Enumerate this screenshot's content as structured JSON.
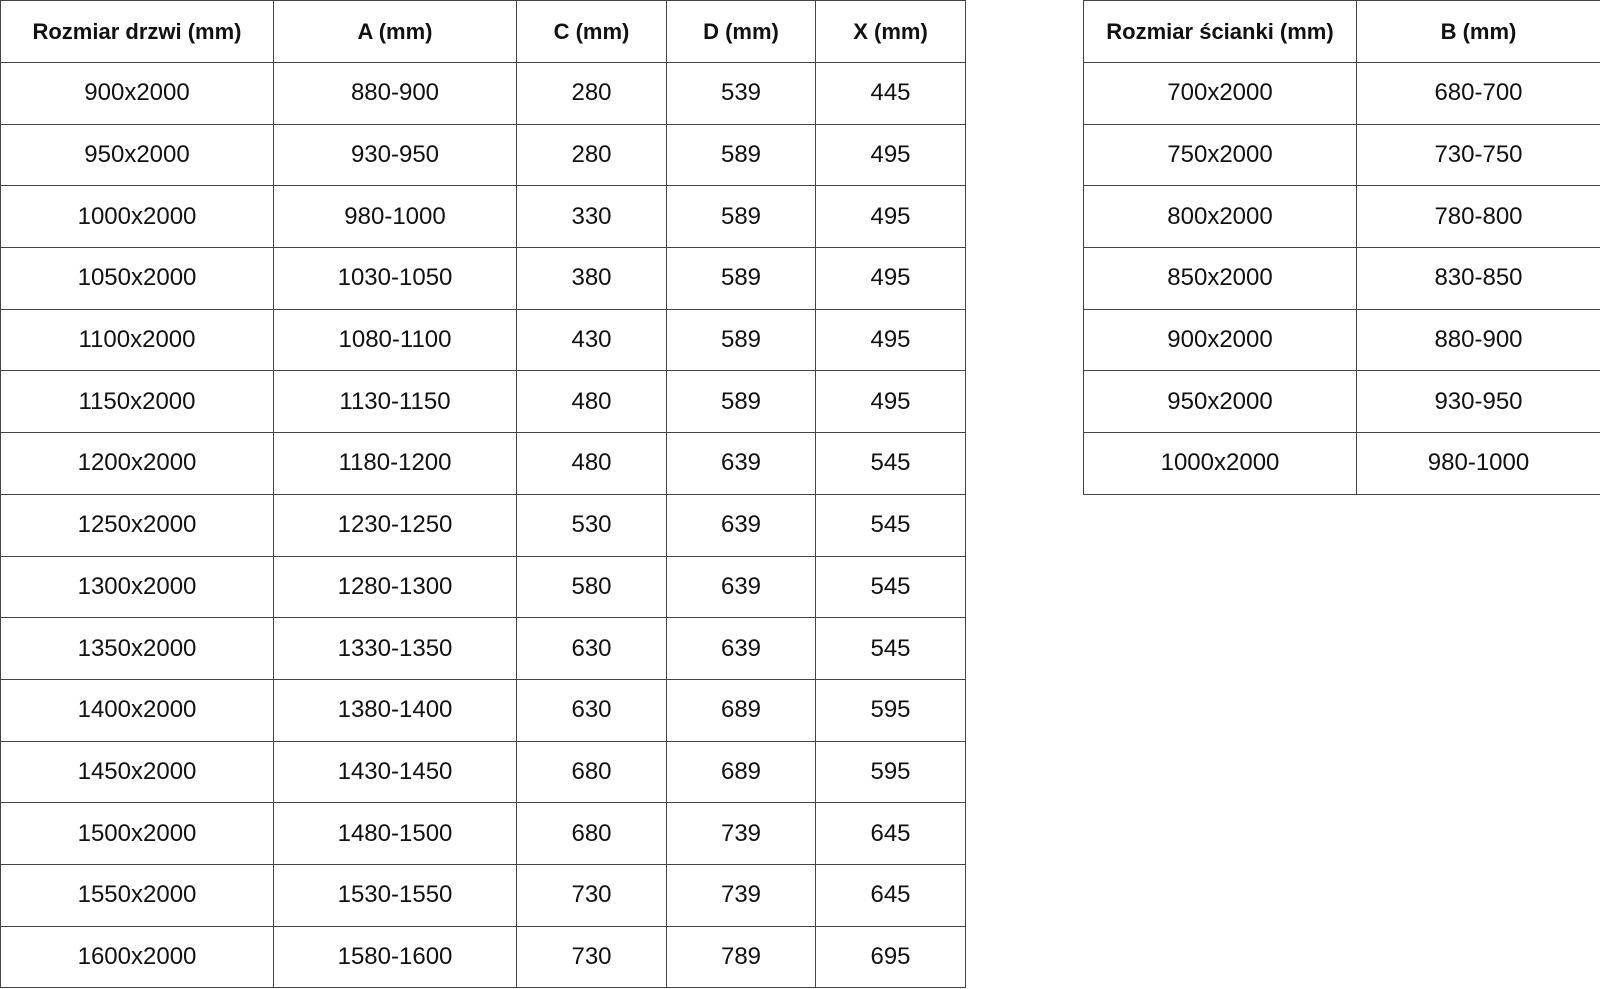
{
  "door_table": {
    "headers": [
      "Rozmiar drzwi (mm)",
      "A (mm)",
      "C (mm)",
      "D (mm)",
      "X (mm)"
    ],
    "rows": [
      [
        "900x2000",
        "880-900",
        "280",
        "539",
        "445"
      ],
      [
        "950x2000",
        "930-950",
        "280",
        "589",
        "495"
      ],
      [
        "1000x2000",
        "980-1000",
        "330",
        "589",
        "495"
      ],
      [
        "1050x2000",
        "1030-1050",
        "380",
        "589",
        "495"
      ],
      [
        "1100x2000",
        "1080-1100",
        "430",
        "589",
        "495"
      ],
      [
        "1150x2000",
        "1130-1150",
        "480",
        "589",
        "495"
      ],
      [
        "1200x2000",
        "1180-1200",
        "480",
        "639",
        "545"
      ],
      [
        "1250x2000",
        "1230-1250",
        "530",
        "639",
        "545"
      ],
      [
        "1300x2000",
        "1280-1300",
        "580",
        "639",
        "545"
      ],
      [
        "1350x2000",
        "1330-1350",
        "630",
        "639",
        "545"
      ],
      [
        "1400x2000",
        "1380-1400",
        "630",
        "689",
        "595"
      ],
      [
        "1450x2000",
        "1430-1450",
        "680",
        "689",
        "595"
      ],
      [
        "1500x2000",
        "1480-1500",
        "680",
        "739",
        "645"
      ],
      [
        "1550x2000",
        "1530-1550",
        "730",
        "739",
        "645"
      ],
      [
        "1600x2000",
        "1580-1600",
        "730",
        "789",
        "695"
      ]
    ]
  },
  "wall_table": {
    "headers": [
      "Rozmiar ścianki (mm)",
      "B (mm)"
    ],
    "rows": [
      [
        "700x2000",
        "680-700"
      ],
      [
        "750x2000",
        "730-750"
      ],
      [
        "800x2000",
        "780-800"
      ],
      [
        "850x2000",
        "830-850"
      ],
      [
        "900x2000",
        "880-900"
      ],
      [
        "950x2000",
        "930-950"
      ],
      [
        "1000x2000",
        "980-1000"
      ]
    ]
  }
}
